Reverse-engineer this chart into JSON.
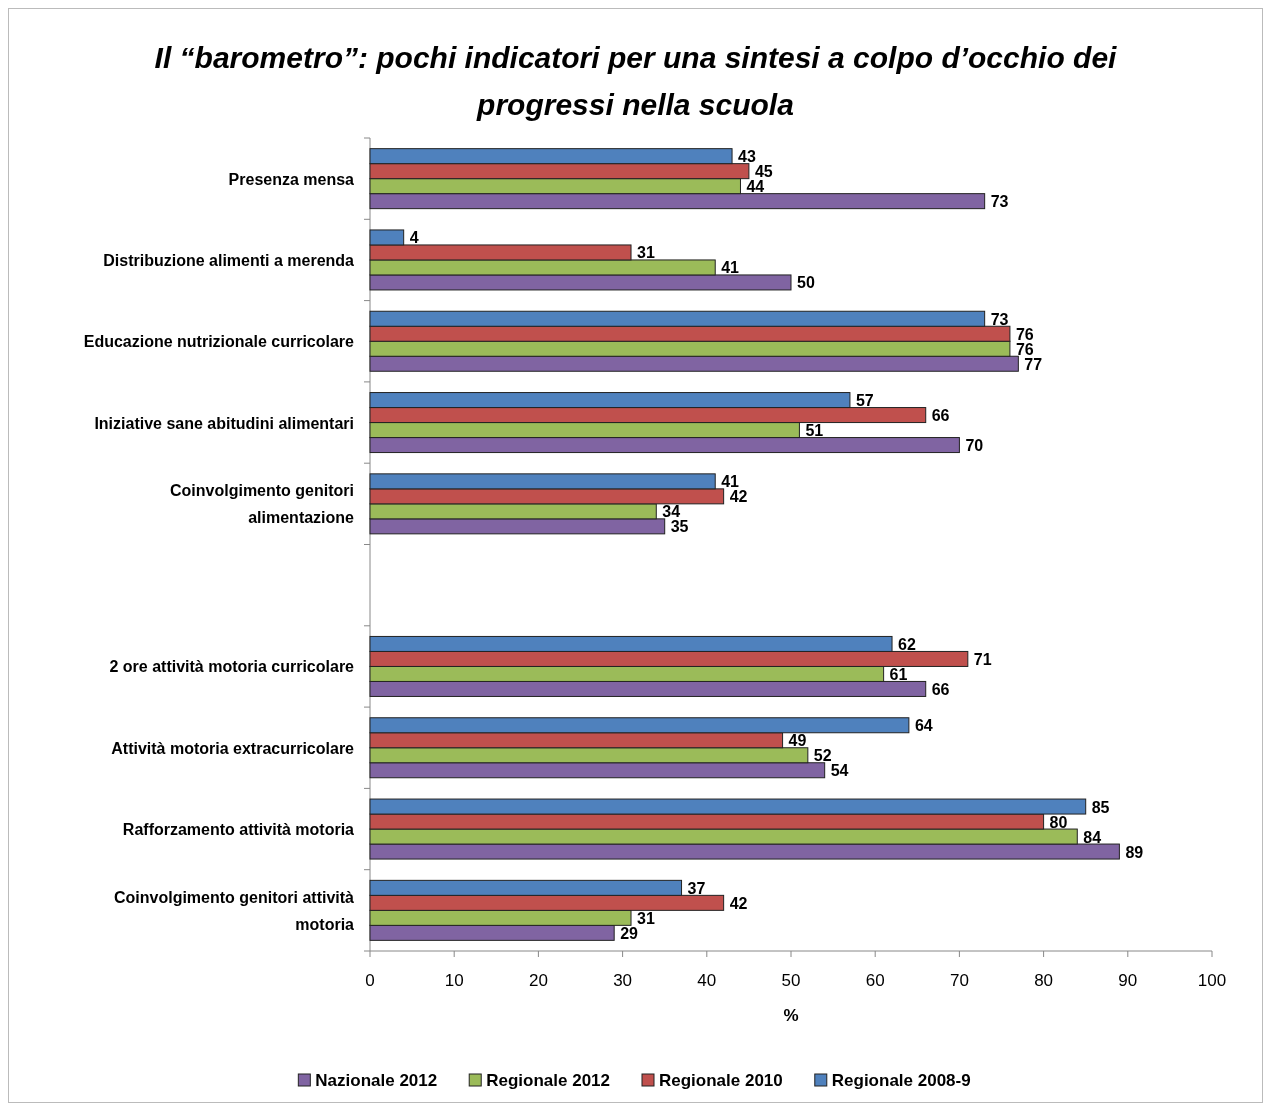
{
  "chart_data": {
    "type": "bar",
    "orientation": "horizontal",
    "title": "Il “barometro”: pochi indicatori per una sintesi a colpo d’occhio dei progressi nella scuola",
    "categories": [
      "Presenza mensa",
      "Distribuzione alimenti a merenda",
      "Educazione nutrizionale curricolare",
      "Iniziative sane abitudini alimentari",
      "Coinvolgimento genitori alimentazione",
      null,
      "2 ore attività motoria curricolare",
      "Attività motoria extracurricolare",
      "Rafforzamento attività motoria",
      "Coinvolgimento genitori attività motoria"
    ],
    "series": [
      {
        "name": "Nazionale 2012",
        "color": "#8064a2",
        "values": [
          73,
          50,
          77,
          70,
          35,
          null,
          66,
          54,
          89,
          29
        ]
      },
      {
        "name": "Regionale 2012",
        "color": "#9bbb59",
        "values": [
          44,
          41,
          76,
          51,
          34,
          null,
          61,
          52,
          84,
          31
        ]
      },
      {
        "name": "Regionale 2010",
        "color": "#c0504d",
        "values": [
          45,
          31,
          76,
          66,
          42,
          null,
          71,
          49,
          80,
          42
        ]
      },
      {
        "name": "Regionale 2008-9",
        "color": "#4f81bd",
        "values": [
          43,
          4,
          73,
          57,
          41,
          null,
          62,
          64,
          85,
          37
        ]
      }
    ],
    "xlabel": "%",
    "xlim": [
      0,
      100
    ],
    "xticks": [
      0,
      10,
      20,
      30,
      40,
      50,
      60,
      70,
      80,
      90,
      100
    ],
    "data_labels": true,
    "legend": "bottom",
    "grid": false
  }
}
